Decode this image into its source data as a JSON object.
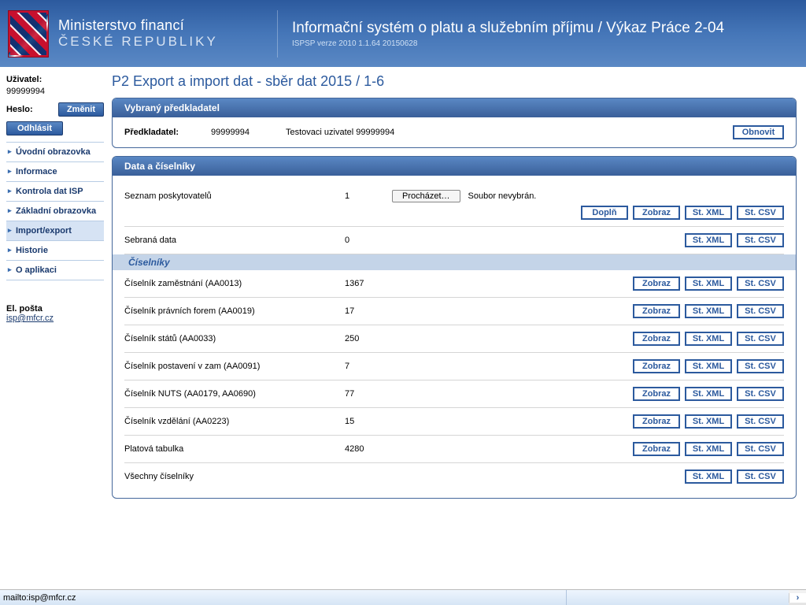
{
  "header": {
    "ministry_title": "Ministerstvo financí",
    "ministry_sub": "ČESKÉ REPUBLIKY",
    "system_title": "Informační systém o platu a služebním příjmu / Výkaz Práce 2-04",
    "system_sub": "ISPSP verze 2010 1.1.64 20150628"
  },
  "sidebar": {
    "user_label": "Uživatel:",
    "user_value": "99999994",
    "heslo_label": "Heslo:",
    "change_btn": "Změnit",
    "logout_btn": "Odhlásit",
    "menu": [
      {
        "label": "Úvodní obrazovka"
      },
      {
        "label": "Informace"
      },
      {
        "label": "Kontrola dat ISP"
      },
      {
        "label": "Základní obrazovka"
      },
      {
        "label": "Import/export",
        "active": true
      },
      {
        "label": "Historie"
      },
      {
        "label": "O aplikaci"
      }
    ],
    "email_label": "El. pošta",
    "email_link": "isp@mfcr.cz"
  },
  "page": {
    "title": "P2 Export a import dat - sběr dat 2015 / 1-6"
  },
  "predkladatel": {
    "panel_title": "Vybraný předkladatel",
    "label": "Předkladatel:",
    "id": "99999994",
    "name": "Testovaci uzivatel 99999994",
    "refresh_btn": "Obnovit"
  },
  "data_panel": {
    "panel_title": "Data a číselníky",
    "seznam_label": "Seznam poskytovatelů",
    "seznam_count": "1",
    "browse_btn": "Procházet…",
    "no_file": "Soubor nevybrán.",
    "sebrana_label": "Sebraná data",
    "sebrana_count": "0",
    "sub_title": "Číselníky",
    "rows": [
      {
        "name": "Číselník zaměstnání (AA0013)",
        "count": "1367"
      },
      {
        "name": "Číselník právních forem (AA0019)",
        "count": "17"
      },
      {
        "name": "Číselník států (AA0033)",
        "count": "250"
      },
      {
        "name": "Číselník postavení v zam (AA0091)",
        "count": "7"
      },
      {
        "name": "Číselník NUTS (AA0179, AA0690)",
        "count": "77"
      },
      {
        "name": "Číselník vzdělání (AA0223)",
        "count": "15"
      },
      {
        "name": "Platová tabulka",
        "count": "4280"
      }
    ],
    "all_label": "Všechny číselníky"
  },
  "buttons": {
    "dopln": "Doplň",
    "zobraz": "Zobraz",
    "stxml": "St. XML",
    "stcsv": "St. CSV"
  },
  "statusbar": {
    "text": "mailto:isp@mfcr.cz"
  }
}
